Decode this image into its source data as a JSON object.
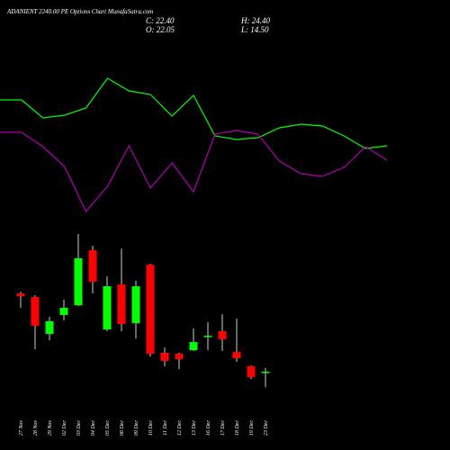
{
  "chart_data": [
    {
      "type": "candlestick",
      "title": "ADANIENT 2240.00 PE Options  Chart MunafaSutra.com",
      "summary": [
        "C: 22.40",
        "O: 22.05",
        "H: 24.40",
        "L: 14.50"
      ],
      "categories": [
        "27 Nov",
        "28 Nov",
        "29 Nov",
        "02 Dec",
        "03 Dec",
        "04 Dec",
        "05 Dec",
        "06 Dec",
        "09 Dec",
        "10 Dec",
        "11 Dec",
        "12 Dec",
        "13 Dec",
        "16 Dec",
        "17 Dec",
        "18 Dec",
        "19 Dec",
        "23 Dec"
      ],
      "open": [
        62.4,
        60.6,
        41.7,
        51.4,
        56.4,
        84.5,
        44.0,
        67.0,
        47.2,
        77.1,
        32.1,
        31.6,
        33.4,
        40.3,
        43.1,
        32.5,
        25.2,
        22.05
      ],
      "high": [
        63.3,
        61.5,
        50.5,
        59.2,
        92.8,
        86.8,
        71.2,
        85.4,
        68.9,
        77.6,
        34.8,
        32.1,
        44.5,
        47.7,
        51.8,
        49.5,
        25.6,
        24.4
      ],
      "low": [
        55.1,
        33.9,
        38.5,
        48.6,
        56.0,
        62.4,
        43.1,
        43.1,
        39.4,
        30.2,
        25.2,
        23.8,
        33.0,
        33.4,
        33.0,
        27.5,
        18.7,
        14.5
      ],
      "close": [
        61.0,
        45.9,
        48.2,
        55.1,
        80.4,
        68.4,
        66.1,
        46.8,
        66.1,
        31.6,
        27.9,
        28.8,
        37.6,
        40.8,
        39.0,
        29.3,
        19.6,
        22.4
      ],
      "up_color": "#00ff00",
      "down_color": "#ff0000",
      "ylim": [
        -17.6,
        97.4
      ]
    },
    {
      "type": "line",
      "categories": [
        null,
        null,
        null,
        null,
        null,
        null,
        null,
        null,
        null,
        null,
        null,
        null,
        null,
        null,
        null,
        null,
        null,
        null,
        null
      ],
      "series": [
        {
          "color": "#00ff00",
          "values": [
            139,
            139,
            119,
            122,
            130,
            163,
            149,
            145,
            121,
            144,
            99,
            95,
            97,
            108,
            112,
            110,
            99,
            85,
            88
          ]
        },
        {
          "color": "#b000b0",
          "values": [
            103,
            103,
            87,
            65,
            15,
            43,
            88,
            41,
            69,
            37,
            101,
            105,
            101,
            71,
            57,
            54,
            64,
            87,
            72
          ]
        }
      ],
      "ylim": [
        0,
        250
      ]
    }
  ]
}
